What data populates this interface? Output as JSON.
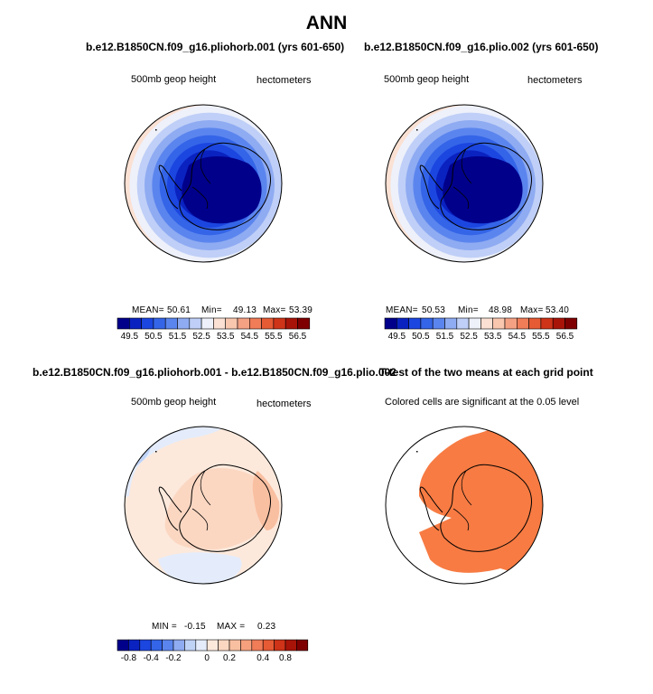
{
  "page": {
    "title": "ANN"
  },
  "colors": {
    "abs_palette": [
      "#00008b",
      "#0a22c0",
      "#1c46e0",
      "#3465e8",
      "#5b85ee",
      "#8fabf2",
      "#bfcff7",
      "#eef1fa",
      "#fbe1d3",
      "#f9c6ae",
      "#f4a183",
      "#f07c58",
      "#e65a34",
      "#cf3318",
      "#a81408",
      "#7f0000"
    ],
    "diff_palette": [
      "#00008b",
      "#0a22c0",
      "#1c46e0",
      "#3465e8",
      "#5b85ee",
      "#8fabf2",
      "#bfd3f7",
      "#e4ecfb",
      "#fce9dc",
      "#fbd7c2",
      "#f9bfa1",
      "#f6a07d",
      "#f07c58",
      "#e65a34",
      "#cf3318",
      "#a81408",
      "#7f0000"
    ],
    "significance": "#f77b43",
    "land_outline": "#000000"
  },
  "panels": {
    "top_left": {
      "title": "b.e12.B1850CN.f09_g16.pliohorb.001 (yrs 601-650)",
      "variable": "500mb geop height",
      "units": "hectometers",
      "mean_label": "MEAN=",
      "mean": "50.61",
      "min_label": "Min=",
      "min": "49.13",
      "max_label": "Max=",
      "max": "53.39"
    },
    "top_right": {
      "title": "b.e12.B1850CN.f09_g16.plio.002 (yrs 601-650)",
      "variable": "500mb geop height",
      "units": "hectometers",
      "mean_label": "MEAN=",
      "mean": "50.53",
      "min_label": "Min=",
      "min": "48.98",
      "max_label": "Max=",
      "max": "53.40"
    },
    "bottom_left": {
      "title": "b.e12.B1850CN.f09_g16.pliohorb.001 - b.e12.B1850CN.f09_g16.plio.002",
      "variable": "500mb geop height",
      "units": "hectometers",
      "min_label": "MIN =",
      "min": "-0.15",
      "max_label": "MAX =",
      "max": "0.23"
    },
    "bottom_right": {
      "title": "T-test of the two means at each grid point",
      "note": "Colored cells are significant at the 0.05 level"
    }
  },
  "chart_data": [
    {
      "type": "heatmap",
      "projection": "south polar stereographic",
      "title": "b.e12.B1850CN.f09_g16.pliohorb.001 (yrs 601-650)",
      "variable": "500mb geop height",
      "units": "hectometers",
      "mean": 50.61,
      "min": 49.13,
      "max": 53.39,
      "ring_levels": [
        49.25,
        49.5,
        49.75,
        50,
        50.5,
        51,
        51.5,
        52,
        52.5,
        53
      ],
      "levels": [
        49.5,
        50.0,
        50.5,
        51.0,
        51.5,
        52.0,
        52.5,
        53.0,
        53.5,
        54.0,
        54.5,
        55.0,
        55.5,
        56.0,
        56.5
      ],
      "colorbar_tick_labels": [
        "49.5",
        "50.5",
        "51.5",
        "52.5",
        "53.5",
        "54.5",
        "55.5",
        "56.5"
      ]
    },
    {
      "type": "heatmap",
      "projection": "south polar stereographic",
      "title": "b.e12.B1850CN.f09_g16.plio.002 (yrs 601-650)",
      "variable": "500mb geop height",
      "units": "hectometers",
      "mean": 50.53,
      "min": 48.98,
      "max": 53.4,
      "ring_levels": [
        49.0,
        49.5,
        49.75,
        50,
        50.5,
        51,
        51.5,
        52,
        52.5,
        53
      ],
      "levels": [
        49.5,
        50.0,
        50.5,
        51.0,
        51.5,
        52.0,
        52.5,
        53.0,
        53.5,
        54.0,
        54.5,
        55.0,
        55.5,
        56.0,
        56.5
      ],
      "colorbar_tick_labels": [
        "49.5",
        "50.5",
        "51.5",
        "52.5",
        "53.5",
        "54.5",
        "55.5",
        "56.5"
      ]
    },
    {
      "type": "heatmap",
      "projection": "south polar stereographic",
      "title": "b.e12.B1850CN.f09_g16.pliohorb.001 - b.e12.B1850CN.f09_g16.plio.002",
      "variable": "500mb geop height",
      "units": "hectometers",
      "min": -0.15,
      "max": 0.23,
      "regions": [
        {
          "value": 0.05,
          "area": "most of domain"
        },
        {
          "value": 0.1,
          "area": "East Antarctica interior"
        },
        {
          "value": 0.15,
          "area": "Wilkes Land sector"
        },
        {
          "value": -0.05,
          "area": "South Atlantic edge and north of Antarctic Peninsula"
        },
        {
          "value": -0.1,
          "area": "far South Atlantic edge"
        },
        {
          "value": -0.05,
          "area": "South Pacific edge"
        }
      ],
      "levels": [
        -0.8,
        -0.6,
        -0.4,
        -0.3,
        -0.2,
        -0.1,
        -0.05,
        0,
        0.05,
        0.1,
        0.2,
        0.3,
        0.4,
        0.6,
        0.8,
        1.0
      ],
      "colorbar_tick_labels": [
        "-0.8",
        "-0.4",
        "-0.2",
        "0",
        "0.2",
        "0.4",
        "0.8"
      ]
    },
    {
      "type": "heatmap",
      "projection": "south polar stereographic",
      "title": "T-test of the two means at each grid point",
      "note": "Colored cells are significant at the 0.05 level",
      "significance_level": 0.05,
      "significant_area": "most of the domain except a band from the South Atlantic rim toward the Antarctic Peninsula and the far Pacific/Atlantic margins"
    }
  ]
}
